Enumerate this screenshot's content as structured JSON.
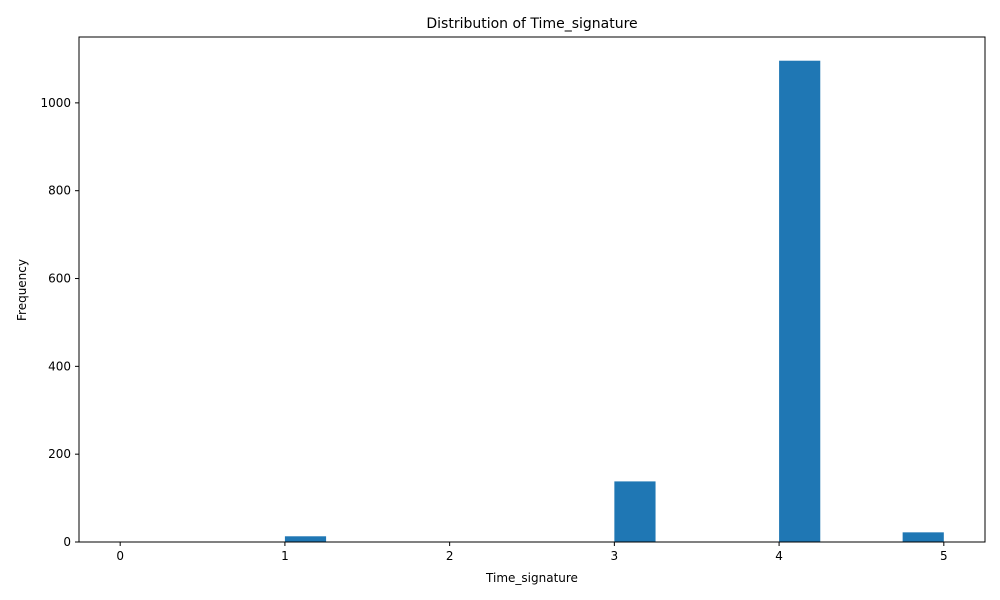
{
  "chart_data": {
    "type": "bar",
    "title": "Distribution of Time_signature",
    "xlabel": "Time_signature",
    "ylabel": "Frequency",
    "x_ticks": [
      0,
      1,
      2,
      3,
      4,
      5
    ],
    "y_ticks": [
      0,
      200,
      400,
      600,
      800,
      1000
    ],
    "xlim": [
      -0.25,
      5.25
    ],
    "ylim": [
      0,
      1150
    ],
    "grid": false,
    "bins": [
      {
        "start": 0.0,
        "end": 0.25,
        "value": 1
      },
      {
        "start": 1.0,
        "end": 1.25,
        "value": 13
      },
      {
        "start": 3.0,
        "end": 3.25,
        "value": 138
      },
      {
        "start": 4.0,
        "end": 4.25,
        "value": 1096
      },
      {
        "start": 4.75,
        "end": 5.0,
        "value": 22
      }
    ],
    "bar_color": "#1f77b4"
  }
}
